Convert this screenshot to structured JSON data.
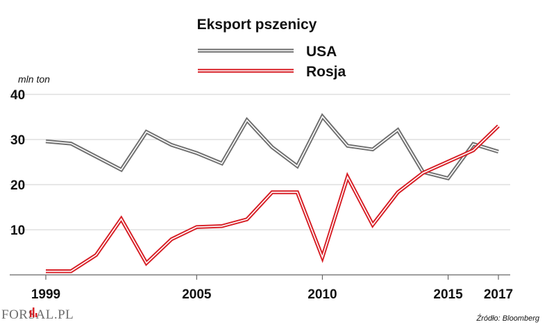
{
  "chart_data": {
    "type": "line",
    "title": "Eksport pszenicy",
    "ylabel": "mln ton",
    "xlabel": "",
    "x": [
      1999,
      2000,
      2001,
      2002,
      2003,
      2004,
      2005,
      2006,
      2007,
      2008,
      2009,
      2010,
      2011,
      2012,
      2013,
      2014,
      2015,
      2016,
      2017
    ],
    "x_ticks": [
      1999,
      2005,
      2010,
      2015,
      2017
    ],
    "y_ticks": [
      10,
      20,
      30,
      40
    ],
    "xlim": [
      1999,
      2017
    ],
    "ylim": [
      0,
      40
    ],
    "grid": true,
    "legend_position": "top-center",
    "series": [
      {
        "name": "USA",
        "color": "#707070",
        "values": [
          29.6,
          29.1,
          26.2,
          23.3,
          31.7,
          28.8,
          27.0,
          24.7,
          34.3,
          28.3,
          24.1,
          35.1,
          28.6,
          27.8,
          32.1,
          22.8,
          21.4,
          29.0,
          27.3
        ]
      },
      {
        "name": "Rosja",
        "color": "#d71f26",
        "values": [
          0.8,
          0.8,
          4.4,
          12.4,
          2.6,
          7.9,
          10.6,
          10.8,
          12.3,
          18.3,
          18.3,
          3.9,
          21.7,
          11.1,
          18.3,
          22.6,
          25.1,
          27.6,
          33.0
        ]
      }
    ]
  },
  "source_text": "Źródło: Bloomberg",
  "brand": {
    "text": "FORSAL.PL",
    "accent_color": "#d71f26"
  }
}
